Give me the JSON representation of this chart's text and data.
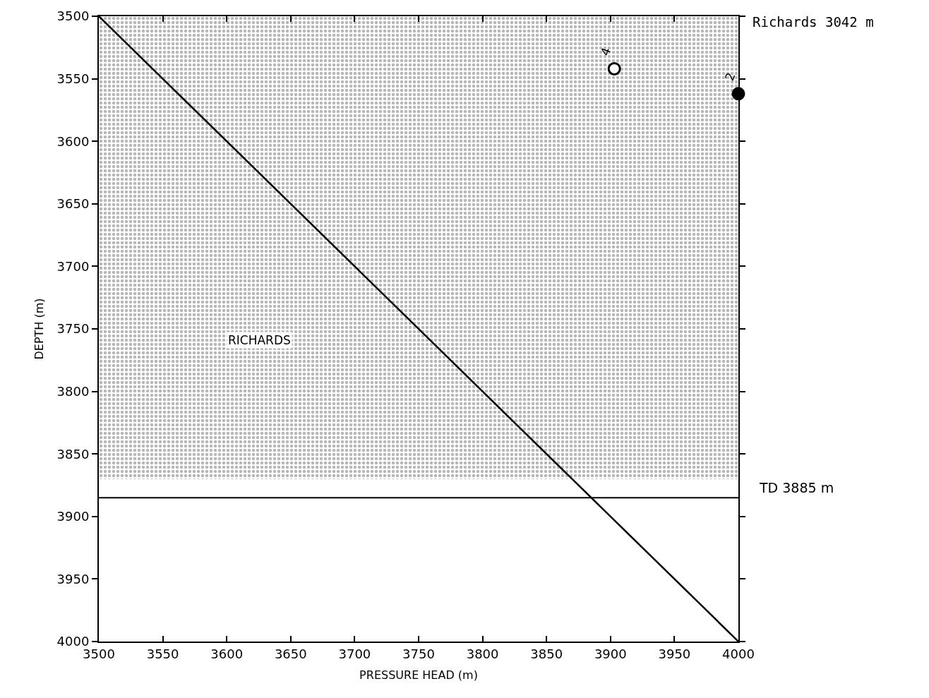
{
  "chart_data": {
    "type": "line",
    "xlabel": "PRESSURE HEAD (m)",
    "ylabel": "DEPTH (m)",
    "xlim": [
      3500,
      4000
    ],
    "xticks": [
      3500,
      3550,
      3600,
      3650,
      3700,
      3750,
      3800,
      3850,
      3900,
      3950,
      4000
    ],
    "ylim": [
      4000,
      3500
    ],
    "yticks": [
      3500,
      3550,
      3600,
      3650,
      3700,
      3750,
      3800,
      3850,
      3900,
      3950,
      4000
    ],
    "line_style": "solid",
    "series": [
      {
        "color": "#000000",
        "x": [
          3500,
          4000
        ],
        "values": [
          3500,
          4000
        ],
        "marker": "none"
      },
      {
        "type": "scatter",
        "color": "#ffffff",
        "x": [
          3903
        ],
        "values": [
          3542
        ],
        "marker": "circle"
      },
      {
        "type": "scatter",
        "color": "#000000",
        "x": [
          4000
        ],
        "values": [
          3562
        ],
        "marker": "circle"
      }
    ],
    "bands": [
      {
        "axis": "y",
        "from": 3500,
        "to": 3870,
        "label": "RICHARDS",
        "color": "#707070"
      }
    ],
    "ref_lines": [
      {
        "axis": "y",
        "value": 3885,
        "label": "TD 3885 m",
        "color": "#000000"
      }
    ],
    "annotations": [
      {
        "text": "4",
        "x": 3903,
        "y": 3542
      },
      {
        "text": "2",
        "x": 4000,
        "y": 3562
      },
      "Richards 3042 m"
    ]
  }
}
